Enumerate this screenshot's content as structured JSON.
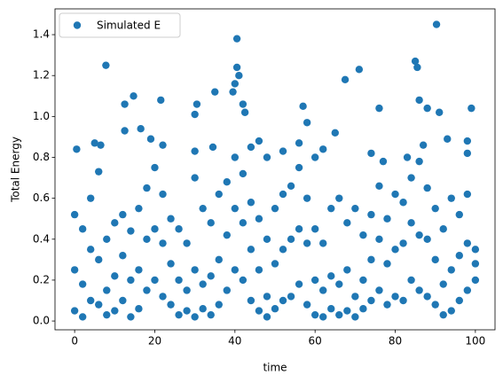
{
  "chart_data": {
    "type": "scatter",
    "xlabel": "time",
    "ylabel": "Total Energy",
    "x": [
      0.5,
      7.8,
      12.5,
      14.7,
      21.5,
      30,
      30.5,
      35,
      40.5,
      40.5,
      40,
      39.5,
      41,
      42,
      42.5,
      57,
      67.5,
      71,
      76,
      85,
      85.5,
      86,
      88,
      90.3,
      91,
      99,
      65,
      58,
      16.5,
      6.5,
      5,
      12.5,
      19,
      22,
      30,
      34.5,
      44,
      46,
      48,
      52,
      56,
      60,
      62,
      74,
      77,
      83,
      87,
      93,
      98,
      98,
      0,
      0,
      0,
      2,
      2,
      2,
      4,
      4,
      4,
      6,
      6,
      6,
      8,
      8,
      8,
      10,
      10,
      10,
      12,
      12,
      12,
      14,
      14,
      14,
      16,
      16,
      16,
      18,
      18,
      18,
      20,
      20,
      20,
      22,
      22,
      22,
      24,
      24,
      24,
      26,
      26,
      26,
      28,
      28,
      28,
      30,
      30,
      30,
      32,
      32,
      32,
      34,
      34,
      34,
      36,
      36,
      36,
      38,
      38,
      38,
      40,
      40,
      40,
      42,
      42,
      42,
      44,
      44,
      44,
      46,
      46,
      46,
      48,
      48,
      48,
      50,
      50,
      50,
      52,
      52,
      52,
      54,
      54,
      54,
      56,
      56,
      56,
      58,
      58,
      58,
      60,
      60,
      60,
      62,
      62,
      62,
      64,
      64,
      64,
      66,
      66,
      66,
      68,
      68,
      68,
      70,
      70,
      70,
      72,
      72,
      72,
      74,
      74,
      74,
      76,
      76,
      76,
      78,
      78,
      78,
      80,
      80,
      80,
      82,
      82,
      82,
      84,
      84,
      84,
      86,
      86,
      86,
      88,
      88,
      88,
      90,
      90,
      90,
      92,
      92,
      92,
      94,
      94,
      94,
      96,
      96,
      96,
      98,
      98,
      98,
      100,
      100,
      100
    ],
    "series": [
      {
        "name": "Simulated E",
        "color": "#1f77b4",
        "values": [
          0.84,
          1.25,
          1.06,
          1.1,
          1.08,
          1.01,
          1.06,
          1.12,
          1.38,
          1.24,
          1.16,
          1.12,
          1.2,
          1.06,
          1.02,
          1.05,
          1.18,
          1.23,
          1.04,
          1.27,
          1.24,
          1.08,
          1.04,
          1.45,
          1.02,
          1.04,
          0.92,
          0.97,
          0.94,
          0.86,
          0.87,
          0.93,
          0.89,
          0.86,
          0.83,
          0.85,
          0.85,
          0.88,
          0.8,
          0.83,
          0.87,
          0.8,
          0.84,
          0.82,
          0.78,
          0.8,
          0.86,
          0.89,
          0.88,
          0.82,
          0.05,
          0.25,
          0.52,
          0.02,
          0.18,
          0.45,
          0.1,
          0.35,
          0.6,
          0.08,
          0.3,
          0.73,
          0.03,
          0.15,
          0.4,
          0.05,
          0.22,
          0.48,
          0.1,
          0.32,
          0.52,
          0.02,
          0.2,
          0.44,
          0.06,
          0.25,
          0.55,
          0.15,
          0.4,
          0.65,
          0.2,
          0.45,
          0.75,
          0.12,
          0.38,
          0.62,
          0.08,
          0.28,
          0.5,
          0.03,
          0.2,
          0.45,
          0.05,
          0.15,
          0.38,
          0.02,
          0.25,
          0.7,
          0.06,
          0.18,
          0.55,
          0.03,
          0.22,
          0.48,
          0.08,
          0.3,
          0.62,
          0.15,
          0.42,
          0.68,
          0.25,
          0.55,
          0.8,
          0.2,
          0.48,
          0.72,
          0.1,
          0.35,
          0.58,
          0.05,
          0.25,
          0.5,
          0.02,
          0.12,
          0.4,
          0.06,
          0.28,
          0.55,
          0.1,
          0.35,
          0.62,
          0.12,
          0.4,
          0.66,
          0.18,
          0.45,
          0.75,
          0.08,
          0.38,
          0.6,
          0.03,
          0.2,
          0.45,
          0.02,
          0.15,
          0.38,
          0.06,
          0.22,
          0.55,
          0.03,
          0.18,
          0.6,
          0.05,
          0.25,
          0.48,
          0.02,
          0.12,
          0.55,
          0.06,
          0.2,
          0.42,
          0.1,
          0.3,
          0.52,
          0.15,
          0.4,
          0.66,
          0.08,
          0.28,
          0.5,
          0.12,
          0.35,
          0.62,
          0.1,
          0.38,
          0.58,
          0.2,
          0.48,
          0.7,
          0.15,
          0.42,
          0.78,
          0.12,
          0.4,
          0.65,
          0.08,
          0.3,
          0.55,
          0.03,
          0.18,
          0.45,
          0.05,
          0.25,
          0.6,
          0.1,
          0.32,
          0.52,
          0.15,
          0.38,
          0.62,
          0.2,
          0.35,
          0.28
        ]
      }
    ],
    "xlim": [
      -4.9,
      104.9
    ],
    "ylim": [
      -0.043,
      1.526
    ],
    "xticks": [
      0,
      20,
      40,
      60,
      80,
      100
    ],
    "yticks": [
      {
        "value": 0,
        "label": "0.0"
      },
      0.2,
      0.4,
      0.6,
      0.8,
      {
        "value": 1,
        "label": "1.0"
      },
      1.2,
      1.4
    ],
    "legend": "upper left"
  }
}
